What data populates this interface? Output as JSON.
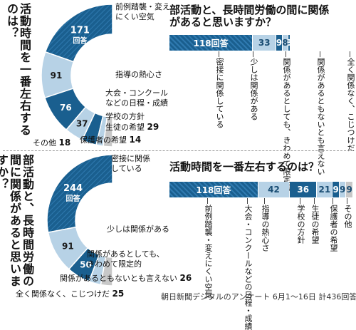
{
  "colors": {
    "dark": "#1a5f8f",
    "light": "#b7d2e6",
    "gray": "#c8c8c8",
    "accent": "#1a5f8f"
  },
  "top_left": {
    "title": "活動時間を一番左右するのは？",
    "unit": "回答",
    "items": [
      {
        "label": "前例踏襲・変えにくい空気",
        "value": 171
      },
      {
        "label": "指導の熱心さ",
        "value": 91
      },
      {
        "label": "大会・コンクールなどの日程・成績",
        "value": 76
      },
      {
        "label": "学校の方針",
        "value": 37
      },
      {
        "label": "生徒の希望",
        "value": 29
      },
      {
        "label": "保護者の希望",
        "value": 14
      },
      {
        "label": "その他",
        "value": 18
      }
    ]
  },
  "top_right": {
    "title": "部活動と、長時間労働の間に関係があると思いますか？",
    "unit": "回答",
    "items": [
      {
        "label": "密接に関係している",
        "value": 118
      },
      {
        "label": "少しは関係がある",
        "value": 33
      },
      {
        "label": "関係があるとしても、きわめて限定的",
        "value": 9
      },
      {
        "label": "関係があるともないとも言えない",
        "value": 8
      },
      {
        "label": "全く関係なく、こじつけだ",
        "value": 3
      }
    ]
  },
  "bottom_left": {
    "title": "部活動と、長時間労働の間に関係があると思いますか？",
    "unit": "回答",
    "items": [
      {
        "label": "密接に関係している",
        "value": 244
      },
      {
        "label": "少しは関係がある",
        "value": 91
      },
      {
        "label": "関係があるとしても、きわめて限定的",
        "value": 50
      },
      {
        "label": "関係があるともないとも言えない",
        "value": 26
      },
      {
        "label": "全く関係なく、こじつけだ",
        "value": 25
      }
    ]
  },
  "bottom_right": {
    "title": "活動時間を一番左右するのは？",
    "unit": "回答",
    "items": [
      {
        "label": "前例踏襲・変えにくい空気",
        "value": 118
      },
      {
        "label": "大会・コンクールなどの日程・成績",
        "value": 42
      },
      {
        "label": "指導の熱心さ",
        "value": 36
      },
      {
        "label": "学校の方針",
        "value": 21
      },
      {
        "label": "生徒の希望",
        "value": 9
      },
      {
        "label": "保護者の希望",
        "value": 9
      },
      {
        "label": "その他",
        "value": 9
      }
    ]
  },
  "footer": "朝日新聞デジタルのアンケート 6月1～16日 計436回答",
  "chart_data": [
    {
      "type": "pie",
      "title": "活動時間を一番左右するのは？",
      "categories": [
        "前例踏襲・変えにくい空気",
        "指導の熱心さ",
        "大会・コンクールなどの日程・成績",
        "学校の方針",
        "生徒の希望",
        "保護者の希望",
        "その他"
      ],
      "values": [
        171,
        91,
        76,
        37,
        29,
        14,
        18
      ]
    },
    {
      "type": "bar",
      "title": "部活動と、長時間労働の間に関係があると思いますか？",
      "categories": [
        "密接に関係している",
        "少しは関係がある",
        "関係があるとしても、きわめて限定的",
        "関係があるともないとも言えない",
        "全く関係なく、こじつけだ"
      ],
      "values": [
        118,
        33,
        9,
        8,
        3
      ]
    },
    {
      "type": "pie",
      "title": "部活動と、長時間労働の間に関係があると思いますか？",
      "categories": [
        "密接に関係している",
        "少しは関係がある",
        "関係があるとしても、きわめて限定的",
        "関係があるともないとも言えない",
        "全く関係なく、こじつけだ"
      ],
      "values": [
        244,
        91,
        50,
        26,
        25
      ]
    },
    {
      "type": "bar",
      "title": "活動時間を一番左右するのは？",
      "categories": [
        "前例踏襲・変えにくい空気",
        "大会・コンクールなどの日程・成績",
        "指導の熱心さ",
        "学校の方針",
        "生徒の希望",
        "保護者の希望",
        "その他"
      ],
      "values": [
        118,
        42,
        36,
        21,
        9,
        9,
        9
      ]
    }
  ]
}
